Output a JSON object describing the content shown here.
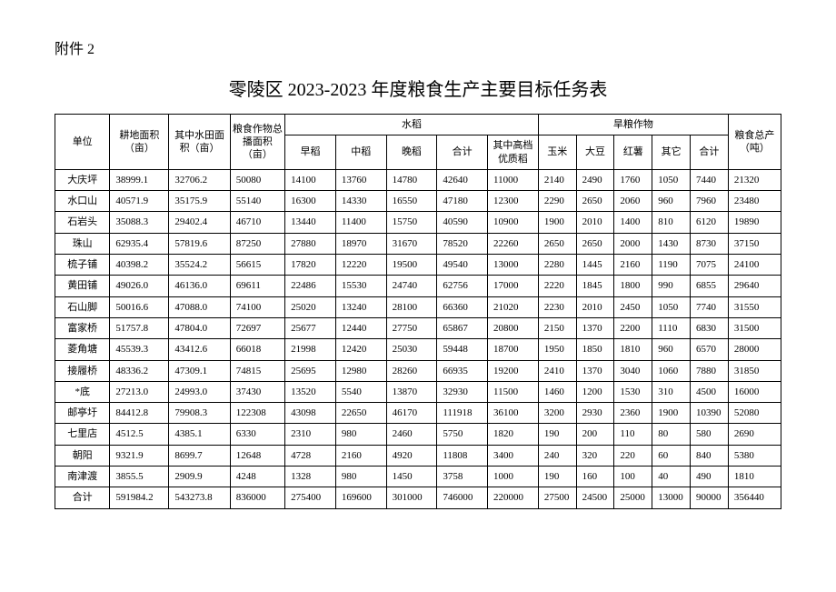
{
  "attachment_label": "附件 2",
  "title": "零陵区 2023-2023 年度粮食生产主要目标任务表",
  "headers": {
    "unit": "单位",
    "cultivated_area": "耕地面积（亩）",
    "paddy_area": "其中水田面积（亩）",
    "total_sown_area": "粮食作物总播面积（亩）",
    "rice_group": "水稻",
    "early_rice": "早稻",
    "mid_rice": "中稻",
    "late_rice": "晚稻",
    "subtotal": "合计",
    "high_quality": "其中高档优质稻",
    "dry_group": "旱粮作物",
    "corn": "玉米",
    "soybean": "大豆",
    "sweet_potato": "红薯",
    "other": "其它",
    "subtotal2": "合计",
    "total_output": "粮食总产（吨）"
  },
  "rows": [
    {
      "unit": "大庆坪",
      "a": "38999.1",
      "b": "32706.2",
      "c": "50080",
      "d": "14100",
      "e": "13760",
      "f": "14780",
      "g": "42640",
      "h": "11000",
      "i": "2140",
      "j": "2490",
      "k": "1760",
      "l": "1050",
      "m": "7440",
      "n": "21320"
    },
    {
      "unit": "水口山",
      "a": "40571.9",
      "b": "35175.9",
      "c": "55140",
      "d": "16300",
      "e": "14330",
      "f": "16550",
      "g": "47180",
      "h": "12300",
      "i": "2290",
      "j": "2650",
      "k": "2060",
      "l": "960",
      "m": "7960",
      "n": "23480"
    },
    {
      "unit": "石岩头",
      "a": "35088.3",
      "b": "29402.4",
      "c": "46710",
      "d": "13440",
      "e": "11400",
      "f": "15750",
      "g": "40590",
      "h": "10900",
      "i": "1900",
      "j": "2010",
      "k": "1400",
      "l": "810",
      "m": "6120",
      "n": "19890"
    },
    {
      "unit": "珠山",
      "a": "62935.4",
      "b": "57819.6",
      "c": "87250",
      "d": "27880",
      "e": "18970",
      "f": "31670",
      "g": "78520",
      "h": "22260",
      "i": "2650",
      "j": "2650",
      "k": "2000",
      "l": "1430",
      "m": "8730",
      "n": "37150"
    },
    {
      "unit": "梳子铺",
      "a": "40398.2",
      "b": "35524.2",
      "c": "56615",
      "d": "17820",
      "e": "12220",
      "f": "19500",
      "g": "49540",
      "h": "13000",
      "i": "2280",
      "j": "1445",
      "k": "2160",
      "l": "1190",
      "m": "7075",
      "n": "24100"
    },
    {
      "unit": "黄田铺",
      "a": "49026.0",
      "b": "46136.0",
      "c": "69611",
      "d": "22486",
      "e": "15530",
      "f": "24740",
      "g": "62756",
      "h": "17000",
      "i": "2220",
      "j": "1845",
      "k": "1800",
      "l": "990",
      "m": "6855",
      "n": "29640"
    },
    {
      "unit": "石山脚",
      "a": "50016.6",
      "b": "47088.0",
      "c": "74100",
      "d": "25020",
      "e": "13240",
      "f": "28100",
      "g": "66360",
      "h": "21020",
      "i": "2230",
      "j": "2010",
      "k": "2450",
      "l": "1050",
      "m": "7740",
      "n": "31550"
    },
    {
      "unit": "富家桥",
      "a": "51757.8",
      "b": "47804.0",
      "c": "72697",
      "d": "25677",
      "e": "12440",
      "f": "27750",
      "g": "65867",
      "h": "20800",
      "i": "2150",
      "j": "1370",
      "k": "2200",
      "l": "1110",
      "m": "6830",
      "n": "31500"
    },
    {
      "unit": "菱角塘",
      "a": "45539.3",
      "b": "43412.6",
      "c": "66018",
      "d": "21998",
      "e": "12420",
      "f": "25030",
      "g": "59448",
      "h": "18700",
      "i": "1950",
      "j": "1850",
      "k": "1810",
      "l": "960",
      "m": "6570",
      "n": "28000"
    },
    {
      "unit": "接履桥",
      "a": "48336.2",
      "b": "47309.1",
      "c": "74815",
      "d": "25695",
      "e": "12980",
      "f": "28260",
      "g": "66935",
      "h": "19200",
      "i": "2410",
      "j": "1370",
      "k": "3040",
      "l": "1060",
      "m": "7880",
      "n": "31850"
    },
    {
      "unit": "*底",
      "a": "27213.0",
      "b": "24993.0",
      "c": "37430",
      "d": "13520",
      "e": "5540",
      "f": "13870",
      "g": "32930",
      "h": "11500",
      "i": "1460",
      "j": "1200",
      "k": "1530",
      "l": "310",
      "m": "4500",
      "n": "16000"
    },
    {
      "unit": "邮亭圩",
      "a": "84412.8",
      "b": "79908.3",
      "c": "122308",
      "d": "43098",
      "e": "22650",
      "f": "46170",
      "g": "111918",
      "h": "36100",
      "i": "3200",
      "j": "2930",
      "k": "2360",
      "l": "1900",
      "m": "10390",
      "n": "52080"
    },
    {
      "unit": "七里店",
      "a": "4512.5",
      "b": "4385.1",
      "c": "6330",
      "d": "2310",
      "e": "980",
      "f": "2460",
      "g": "5750",
      "h": "1820",
      "i": "190",
      "j": "200",
      "k": "110",
      "l": "80",
      "m": "580",
      "n": "2690"
    },
    {
      "unit": "朝阳",
      "a": "9321.9",
      "b": "8699.7",
      "c": "12648",
      "d": "4728",
      "e": "2160",
      "f": "4920",
      "g": "11808",
      "h": "3400",
      "i": "240",
      "j": "320",
      "k": "220",
      "l": "60",
      "m": "840",
      "n": "5380"
    },
    {
      "unit": "南津渡",
      "a": "3855.5",
      "b": "2909.9",
      "c": "4248",
      "d": "1328",
      "e": "980",
      "f": "1450",
      "g": "3758",
      "h": "1000",
      "i": "190",
      "j": "160",
      "k": "100",
      "l": "40",
      "m": "490",
      "n": "1810"
    },
    {
      "unit": "合计",
      "a": "591984.2",
      "b": "543273.8",
      "c": "836000",
      "d": "275400",
      "e": "169600",
      "f": "301000",
      "g": "746000",
      "h": "220000",
      "i": "27500",
      "j": "24500",
      "k": "25000",
      "l": "13000",
      "m": "90000",
      "n": "356440"
    }
  ]
}
